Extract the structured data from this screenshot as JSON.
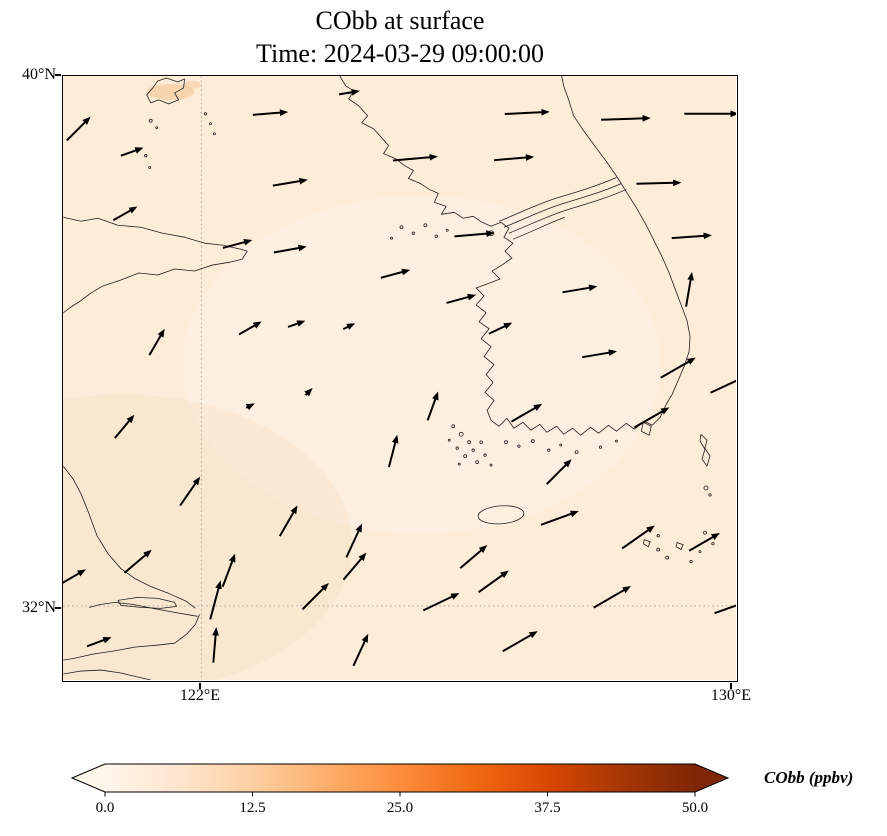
{
  "chart_data": {
    "type": "map_quiver_heatmap",
    "title": "CObb at surface",
    "subtitle": "Time: 2024-03-29 09:00:00",
    "variable": "CObb",
    "level": "surface",
    "time": "2024-03-29 09:00:00",
    "lon_range": [
      119.9,
      130.12
    ],
    "lat_range": [
      30.88,
      40.0
    ],
    "x_tick_lons": [
      122,
      130
    ],
    "x_tick_labels": [
      "122°E",
      "130°E"
    ],
    "y_tick_lats": [
      40,
      32
    ],
    "y_tick_labels": [
      "40°N",
      "32°N"
    ],
    "grid": {
      "lon_lines": [
        122
      ],
      "lat_lines": [
        32
      ]
    },
    "field_summary": "CObb mostly below ~5 ppbv over the whole domain; faint orange enhancement near 121.6E, 39.8N",
    "map_colors": {
      "base": "#fcecd8",
      "light_patch": "#fdf3e8",
      "southwest_tint": "#f9e2c7",
      "hotspot": "#f5bd85",
      "grid": "#b0a8a0"
    },
    "arrow_color": "#000000",
    "colorbar": {
      "label": "CObb (ppbv)",
      "vmin": 0.0,
      "vmax": 50.0,
      "tick_values": [
        0.0,
        12.5,
        25.0,
        37.5,
        50.0
      ],
      "tick_labels": [
        "0.0",
        "12.5",
        "25.0",
        "37.5",
        "50.0"
      ],
      "extend": "both",
      "stops": [
        {
          "pos": 0.0,
          "color": "#fff5eb"
        },
        {
          "pos": 0.125,
          "color": "#fee6ce"
        },
        {
          "pos": 0.25,
          "color": "#fdd0a2"
        },
        {
          "pos": 0.375,
          "color": "#fdae6b"
        },
        {
          "pos": 0.5,
          "color": "#fd8d3c"
        },
        {
          "pos": 0.625,
          "color": "#f16913"
        },
        {
          "pos": 0.75,
          "color": "#d94801"
        },
        {
          "pos": 0.875,
          "color": "#a63603"
        },
        {
          "pos": 1.0,
          "color": "#7f2704"
        }
      ]
    },
    "quiver_units": "relative wind vectors (direction/speed)",
    "quiver": [
      {
        "lon": 120.1,
        "lat": 39.17,
        "u": 4.0,
        "v": 4.0
      },
      {
        "lon": 120.9,
        "lat": 38.84,
        "u": 3.4,
        "v": 1.2
      },
      {
        "lon": 123.0,
        "lat": 39.43,
        "u": 6.0,
        "v": 0.5
      },
      {
        "lon": 124.2,
        "lat": 39.74,
        "u": 3.0,
        "v": 0.5
      },
      {
        "lon": 125.2,
        "lat": 38.75,
        "u": 8.0,
        "v": 0.7
      },
      {
        "lon": 126.9,
        "lat": 39.44,
        "u": 8.0,
        "v": 0.4
      },
      {
        "lon": 128.4,
        "lat": 39.35,
        "u": 9.0,
        "v": 0.3
      },
      {
        "lon": 129.7,
        "lat": 39.43,
        "u": 10.0,
        "v": 0.0
      },
      {
        "lon": 123.3,
        "lat": 38.38,
        "u": 5.9,
        "v": 1.0
      },
      {
        "lon": 126.7,
        "lat": 38.75,
        "u": 7.0,
        "v": 0.6
      },
      {
        "lon": 128.9,
        "lat": 38.38,
        "u": 8.0,
        "v": 0.2
      },
      {
        "lon": 120.8,
        "lat": 37.9,
        "u": 3.8,
        "v": 2.2
      },
      {
        "lon": 122.5,
        "lat": 37.45,
        "u": 4.8,
        "v": 1.3
      },
      {
        "lon": 123.3,
        "lat": 37.37,
        "u": 5.5,
        "v": 1.0
      },
      {
        "lon": 124.9,
        "lat": 37.0,
        "u": 4.8,
        "v": 1.3
      },
      {
        "lon": 126.1,
        "lat": 37.6,
        "u": 7.0,
        "v": 0.6
      },
      {
        "lon": 127.7,
        "lat": 36.77,
        "u": 5.9,
        "v": 1.0
      },
      {
        "lon": 129.4,
        "lat": 37.57,
        "u": 7.0,
        "v": 0.5
      },
      {
        "lon": 129.4,
        "lat": 36.73,
        "u": 1.0,
        "v": 5.9
      },
      {
        "lon": 121.3,
        "lat": 35.94,
        "u": 2.5,
        "v": 4.3
      },
      {
        "lon": 122.7,
        "lat": 36.17,
        "u": 3.5,
        "v": 2.0
      },
      {
        "lon": 123.4,
        "lat": 36.24,
        "u": 2.3,
        "v": 0.8
      },
      {
        "lon": 124.2,
        "lat": 36.2,
        "u": 1.2,
        "v": 0.6
      },
      {
        "lon": 125.9,
        "lat": 36.62,
        "u": 4.8,
        "v": 1.3
      },
      {
        "lon": 126.5,
        "lat": 36.17,
        "u": 3.6,
        "v": 1.7
      },
      {
        "lon": 128.0,
        "lat": 35.79,
        "u": 5.9,
        "v": 1.0
      },
      {
        "lon": 129.2,
        "lat": 35.57,
        "u": 6.1,
        "v": 3.5
      },
      {
        "lon": 130.0,
        "lat": 35.34,
        "u": 7.3,
        "v": 3.4
      },
      {
        "lon": 120.8,
        "lat": 34.67,
        "u": 3.2,
        "v": 3.8
      },
      {
        "lon": 121.8,
        "lat": 33.69,
        "u": 3.4,
        "v": 4.9
      },
      {
        "lon": 122.7,
        "lat": 35.0,
        "u": 0.6,
        "v": 0.3
      },
      {
        "lon": 123.6,
        "lat": 35.2,
        "u": 0.5,
        "v": 0.5
      },
      {
        "lon": 125.5,
        "lat": 34.97,
        "u": 1.7,
        "v": 4.7
      },
      {
        "lon": 124.9,
        "lat": 34.29,
        "u": 1.4,
        "v": 5.4
      },
      {
        "lon": 126.9,
        "lat": 34.89,
        "u": 5.2,
        "v": 3.0
      },
      {
        "lon": 127.4,
        "lat": 33.99,
        "u": 4.2,
        "v": 4.2
      },
      {
        "lon": 128.8,
        "lat": 34.82,
        "u": 6.1,
        "v": 3.5
      },
      {
        "lon": 123.3,
        "lat": 33.24,
        "u": 3.0,
        "v": 5.2
      },
      {
        "lon": 124.3,
        "lat": 32.94,
        "u": 2.7,
        "v": 5.8
      },
      {
        "lon": 126.1,
        "lat": 32.71,
        "u": 4.6,
        "v": 3.9
      },
      {
        "lon": 127.4,
        "lat": 33.31,
        "u": 6.6,
        "v": 2.4
      },
      {
        "lon": 128.6,
        "lat": 33.01,
        "u": 5.7,
        "v": 4.0
      },
      {
        "lon": 129.6,
        "lat": 32.94,
        "u": 5.2,
        "v": 3.0
      },
      {
        "lon": 120.0,
        "lat": 32.41,
        "u": 4.3,
        "v": 2.5
      },
      {
        "lon": 121.0,
        "lat": 32.64,
        "u": 4.6,
        "v": 3.9
      },
      {
        "lon": 122.2,
        "lat": 32.04,
        "u": 1.8,
        "v": 6.8
      },
      {
        "lon": 122.4,
        "lat": 32.49,
        "u": 2.1,
        "v": 5.6
      },
      {
        "lon": 123.7,
        "lat": 32.11,
        "u": 4.5,
        "v": 4.5
      },
      {
        "lon": 124.3,
        "lat": 32.56,
        "u": 3.9,
        "v": 4.6
      },
      {
        "lon": 125.6,
        "lat": 32.04,
        "u": 6.3,
        "v": 3.0
      },
      {
        "lon": 126.4,
        "lat": 32.34,
        "u": 5.2,
        "v": 3.7
      },
      {
        "lon": 128.2,
        "lat": 32.11,
        "u": 6.6,
        "v": 3.8
      },
      {
        "lon": 130.0,
        "lat": 31.96,
        "u": 5.6,
        "v": 2.0
      },
      {
        "lon": 120.4,
        "lat": 31.44,
        "u": 3.8,
        "v": 1.4
      },
      {
        "lon": 122.2,
        "lat": 31.36,
        "u": 0.5,
        "v": 6.0
      },
      {
        "lon": 124.4,
        "lat": 31.29,
        "u": 2.5,
        "v": 5.4
      },
      {
        "lon": 126.8,
        "lat": 31.44,
        "u": 6.1,
        "v": 3.5
      }
    ]
  }
}
